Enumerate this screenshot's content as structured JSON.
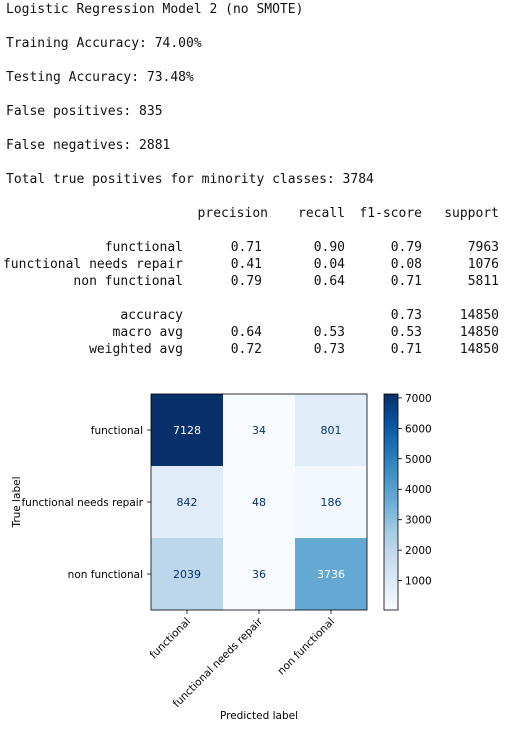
{
  "output": {
    "title": "Logistic Regression Model 2 (no SMOTE)",
    "training_accuracy": "Training Accuracy: 74.00%",
    "testing_accuracy": "Testing Accuracy: 73.48%",
    "false_positives": "False positives: 835",
    "false_negatives": "False negatives: 2881",
    "true_positives": "Total true positives for minority classes: 3784"
  },
  "report": {
    "headers": [
      "precision",
      "recall",
      "f1-score",
      "support"
    ],
    "rows": [
      {
        "label": "functional",
        "precision": "0.71",
        "recall": "0.90",
        "f1": "0.79",
        "support": "7963"
      },
      {
        "label": "functional needs repair",
        "precision": "0.41",
        "recall": "0.04",
        "f1": "0.08",
        "support": "1076"
      },
      {
        "label": "non functional",
        "precision": "0.79",
        "recall": "0.64",
        "f1": "0.71",
        "support": "5811"
      },
      {
        "label": "accuracy",
        "precision": "",
        "recall": "",
        "f1": "0.73",
        "support": "14850"
      },
      {
        "label": "macro avg",
        "precision": "0.64",
        "recall": "0.53",
        "f1": "0.53",
        "support": "14850"
      },
      {
        "label": "weighted avg",
        "precision": "0.72",
        "recall": "0.73",
        "f1": "0.71",
        "support": "14850"
      }
    ]
  },
  "chart_data": {
    "type": "heatmap",
    "rows": [
      "functional",
      "functional needs repair",
      "non functional"
    ],
    "cols": [
      "functional",
      "functional needs repair",
      "non functional"
    ],
    "values": [
      [
        7128,
        34,
        801
      ],
      [
        842,
        48,
        186
      ],
      [
        2039,
        36,
        3736
      ]
    ],
    "xlabel": "Predicted label",
    "ylabel": "True label",
    "colorbar_ticks": [
      1000,
      2000,
      3000,
      4000,
      5000,
      6000,
      7000
    ],
    "colormap": "Blues",
    "vmin": 34,
    "vmax": 7128
  }
}
